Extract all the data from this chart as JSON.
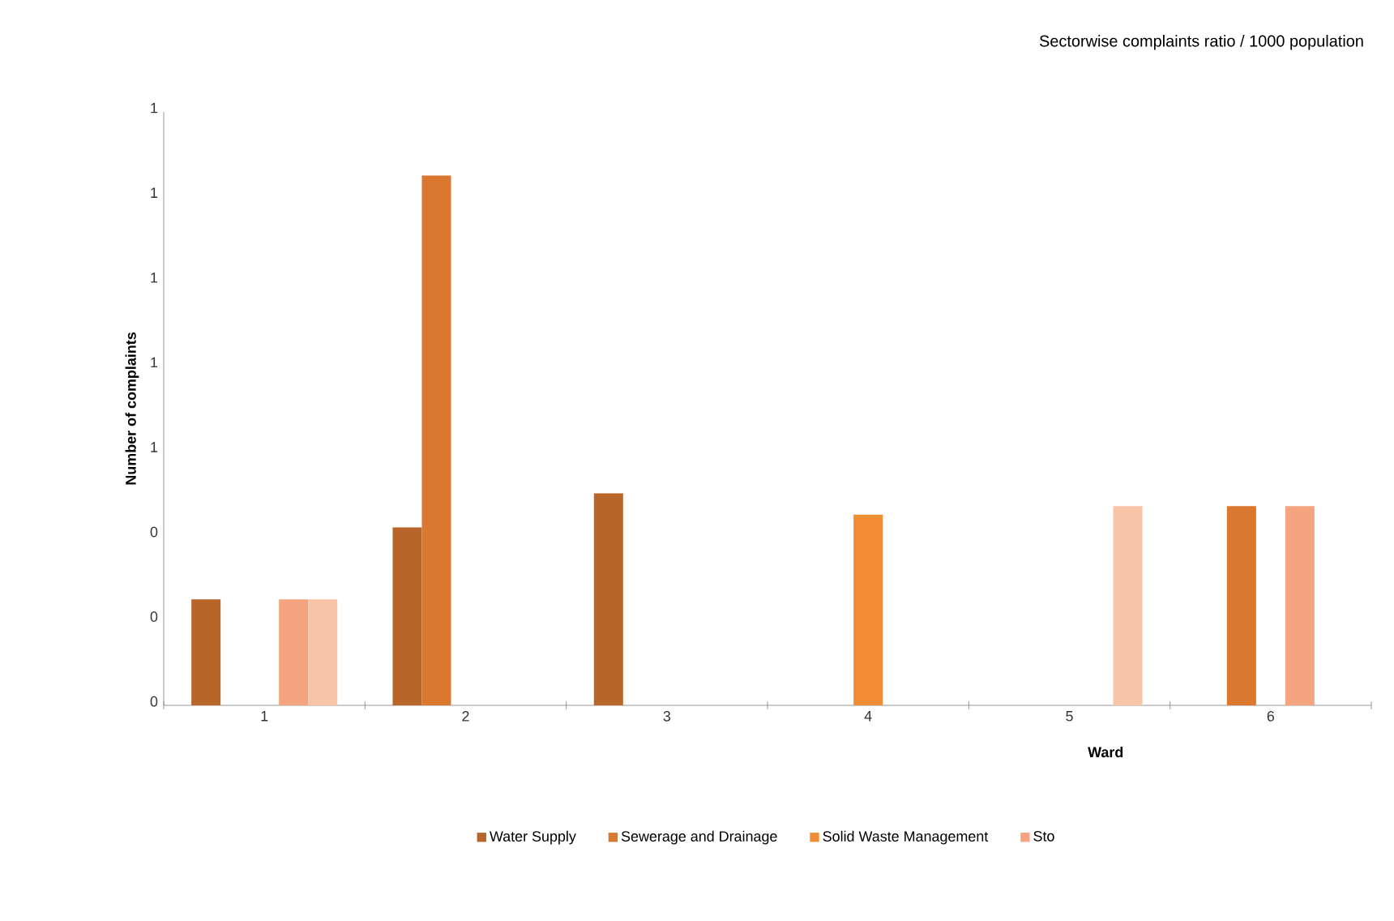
{
  "chart_data": {
    "type": "bar",
    "title": "Sectorwise complaints ratio / 1000 population",
    "xlabel": "Ward",
    "ylabel": "Number of complaints",
    "categories": [
      "1",
      "2",
      "3",
      "4",
      "5",
      "6"
    ],
    "series": [
      {
        "name": "Water Supply",
        "color": "#b8652a",
        "values": [
          0.25,
          0.42,
          0.5,
          0,
          0,
          0
        ]
      },
      {
        "name": "Sewerage and Drainage",
        "color": "#d9782e",
        "values": [
          0,
          1.25,
          0,
          0,
          0,
          0.47
        ]
      },
      {
        "name": "Solid Waste Management",
        "color": "#f08c34",
        "values": [
          0,
          0,
          0,
          0.45,
          0,
          0
        ]
      },
      {
        "name": "Sto",
        "color": "#f4a580",
        "values": [
          0.25,
          0,
          0,
          0,
          0,
          0.47
        ]
      },
      {
        "color": "#f8c4a8",
        "values": [
          0.25,
          0,
          0,
          0,
          0.47,
          0
        ]
      }
    ],
    "ylim": [
      0,
      1.4
    ],
    "yticks": [
      0,
      {
        "value": 0.2,
        "label": "0"
      },
      {
        "value": 0.4,
        "label": "0"
      },
      {
        "value": 0.6,
        "label": "1"
      },
      {
        "value": 0.8,
        "label": "1"
      },
      {
        "value": 1.0,
        "label": "1"
      },
      {
        "value": 1.2,
        "label": "1"
      },
      {
        "value": 1.4,
        "label": "1"
      }
    ],
    "grid": false,
    "legend": "bottom"
  }
}
